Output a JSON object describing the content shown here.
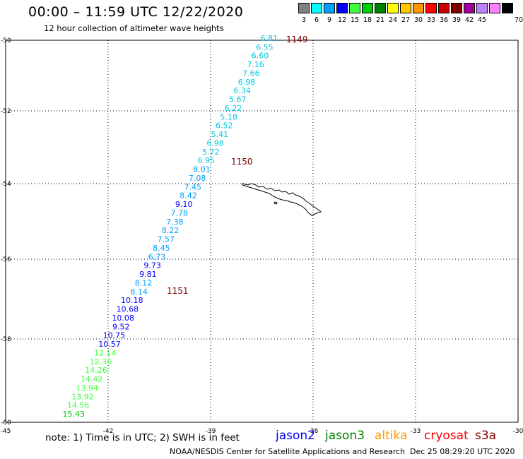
{
  "header": {
    "title": "00:00 – 11:59 UTC 12/22/2020",
    "subtitle": "12 hour collection of altimeter wave heights"
  },
  "color_scale": {
    "unit": "70 (ft)",
    "bins": [
      {
        "label": "3",
        "color": "#808080"
      },
      {
        "label": "6",
        "color": "#00ffff"
      },
      {
        "label": "9",
        "color": "#00a0ff"
      },
      {
        "label": "12",
        "color": "#0000ff"
      },
      {
        "label": "15",
        "color": "#40ff40"
      },
      {
        "label": "18",
        "color": "#00cc00"
      },
      {
        "label": "21",
        "color": "#008000"
      },
      {
        "label": "24",
        "color": "#ffff00"
      },
      {
        "label": "27",
        "color": "#ffc800"
      },
      {
        "label": "30",
        "color": "#ff9600"
      },
      {
        "label": "33",
        "color": "#ff0000"
      },
      {
        "label": "36",
        "color": "#c80000"
      },
      {
        "label": "39",
        "color": "#800000"
      },
      {
        "label": "42",
        "color": "#a000a0"
      },
      {
        "label": "45",
        "color": "#c080ff"
      },
      {
        "label": "",
        "color": "#ff80ff"
      },
      {
        "label": "",
        "color": "#000000"
      }
    ]
  },
  "axes": {
    "lon_labels": [
      "-45",
      "-42",
      "-39",
      "-36",
      "-33",
      "-30"
    ],
    "lat_labels": [
      "-50",
      "-52",
      "-54",
      "-56",
      "-58",
      "-60"
    ],
    "lon_values": [
      -45,
      -42,
      -39,
      -36,
      -33,
      -30
    ],
    "lat_values": [
      -50,
      -52,
      -54,
      -56,
      -58,
      -60
    ]
  },
  "track": {
    "swh_ft": [
      "6.81",
      "6.55",
      "6.60",
      "7.16",
      "7.66",
      "6.98",
      "6.34",
      "5.67",
      "6.22",
      "5.18",
      "6.52",
      "5.41",
      "6.98",
      "5.72",
      "6.95",
      "8.01",
      "7.08",
      "7.45",
      "8.42",
      "9.10",
      "7.78",
      "7.38",
      "8.22",
      "7.57",
      "8.45",
      "6.73",
      "9.73",
      "9.81",
      "8.12",
      "8.14",
      "10.18",
      "10.68",
      "10.08",
      "9.52",
      "10.75",
      "10.57",
      "12.14",
      "12.36",
      "14.26",
      "14.42",
      "13.94",
      "13.92",
      "14.56",
      "15.43"
    ],
    "colors": [
      "#00c8e0",
      "#00c8e0",
      "#00c8e0",
      "#00c8e0",
      "#00c8e0",
      "#00c8e0",
      "#00c8e0",
      "#00c8e0",
      "#00c8e0",
      "#00c8e0",
      "#00c8e0",
      "#00c8e0",
      "#00c8e0",
      "#00c8e0",
      "#00c8e0",
      "#00a0ff",
      "#00a0ff",
      "#00a0ff",
      "#00a0ff",
      "#0000ff",
      "#00a0ff",
      "#00a0ff",
      "#00a0ff",
      "#00a0ff",
      "#00a0ff",
      "#00a0ff",
      "#0000ff",
      "#0000ff",
      "#00a0ff",
      "#00a0ff",
      "#0000ff",
      "#0000ff",
      "#0000ff",
      "#0000ff",
      "#0000ff",
      "#0000ff",
      "#40ff40",
      "#40ff40",
      "#40ff40",
      "#40ff40",
      "#40ff40",
      "#40ff40",
      "#40ff40",
      "#00cc00"
    ],
    "pass_labels": [
      "1149",
      "1150",
      "1151"
    ],
    "pass_color": "#800000"
  },
  "footer": {
    "note": "note: 1) Time is in UTC; 2) SWH is in feet",
    "satellites": [
      {
        "name": "jason2",
        "color": "#0000ff"
      },
      {
        "name": "jason3",
        "color": "#008000"
      },
      {
        "name": "altika",
        "color": "#ff9600"
      },
      {
        "name": "cryosat",
        "color": "#ff0000"
      },
      {
        "name": "s3a",
        "color": "#800000"
      }
    ],
    "credit": "NOAA/NESDIS Center for Satellite Applications and Research",
    "timestamp": "Dec 25 08:29:20 UTC 2020"
  }
}
